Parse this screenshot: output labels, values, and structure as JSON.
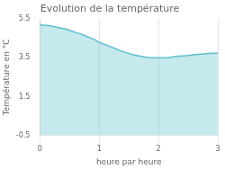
{
  "chart_data": {
    "type": "area",
    "title": "Evolution de la température",
    "xlabel": "heure par heure",
    "ylabel": "Température en °C",
    "x": [
      0,
      0.08,
      0.17,
      0.25,
      0.33,
      0.42,
      0.5,
      0.58,
      0.67,
      0.75,
      0.83,
      0.92,
      1.0,
      1.08,
      1.17,
      1.25,
      1.33,
      1.42,
      1.5,
      1.58,
      1.67,
      1.75,
      1.83,
      1.92,
      2.0,
      2.08,
      2.17,
      2.25,
      2.33,
      2.42,
      2.5,
      2.58,
      2.67,
      2.75,
      2.83,
      2.92,
      3.0
    ],
    "values": [
      5.2,
      5.18,
      5.15,
      5.1,
      5.05,
      5.0,
      4.92,
      4.83,
      4.75,
      4.65,
      4.55,
      4.45,
      4.3,
      4.2,
      4.1,
      4.0,
      3.9,
      3.8,
      3.72,
      3.65,
      3.6,
      3.55,
      3.52,
      3.5,
      3.5,
      3.5,
      3.52,
      3.55,
      3.58,
      3.6,
      3.62,
      3.65,
      3.68,
      3.7,
      3.72,
      3.73,
      3.75
    ],
    "color": "#5bbfcf",
    "xlim": [
      0,
      3
    ],
    "ylim": [
      -0.5,
      5.5
    ],
    "xticks": [
      0,
      1,
      2,
      3
    ],
    "yticks": [
      -0.5,
      1.5,
      3.5,
      5.5
    ],
    "grid": "x"
  }
}
